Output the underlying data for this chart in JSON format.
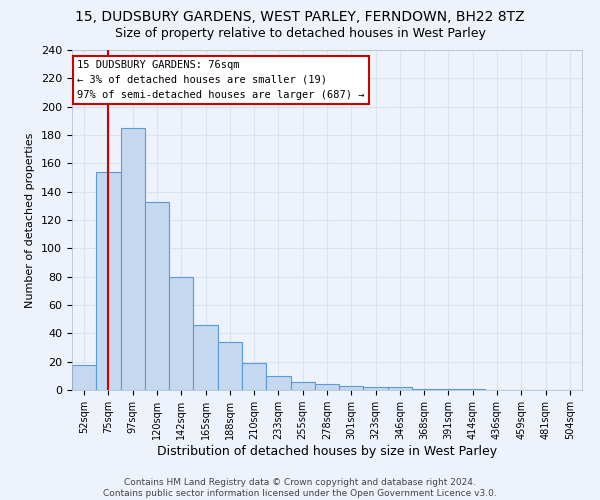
{
  "title1": "15, DUDSBURY GARDENS, WEST PARLEY, FERNDOWN, BH22 8TZ",
  "title2": "Size of property relative to detached houses in West Parley",
  "xlabel": "Distribution of detached houses by size in West Parley",
  "ylabel": "Number of detached properties",
  "bar_labels": [
    "52sqm",
    "75sqm",
    "97sqm",
    "120sqm",
    "142sqm",
    "165sqm",
    "188sqm",
    "210sqm",
    "233sqm",
    "255sqm",
    "278sqm",
    "301sqm",
    "323sqm",
    "346sqm",
    "368sqm",
    "391sqm",
    "414sqm",
    "436sqm",
    "459sqm",
    "481sqm",
    "504sqm"
  ],
  "bar_values": [
    18,
    154,
    185,
    133,
    80,
    46,
    34,
    19,
    10,
    6,
    4,
    3,
    2,
    2,
    1,
    1,
    1,
    0,
    0,
    0,
    0
  ],
  "bar_color": "#c5d8f0",
  "bar_edge_color": "#5b9bd5",
  "property_line_x": 1,
  "annotation_text": "15 DUDSBURY GARDENS: 76sqm\n← 3% of detached houses are smaller (19)\n97% of semi-detached houses are larger (687) →",
  "annotation_box_color": "#ffffff",
  "annotation_box_edge": "#cc0000",
  "red_line_color": "#cc0000",
  "ylim": [
    0,
    240
  ],
  "yticks": [
    0,
    20,
    40,
    60,
    80,
    100,
    120,
    140,
    160,
    180,
    200,
    220,
    240
  ],
  "footer1": "Contains HM Land Registry data © Crown copyright and database right 2024.",
  "footer2": "Contains public sector information licensed under the Open Government Licence v3.0.",
  "bg_color": "#eef2fb",
  "grid_color": "#d8e4f0",
  "title1_fontsize": 10,
  "title2_fontsize": 9
}
